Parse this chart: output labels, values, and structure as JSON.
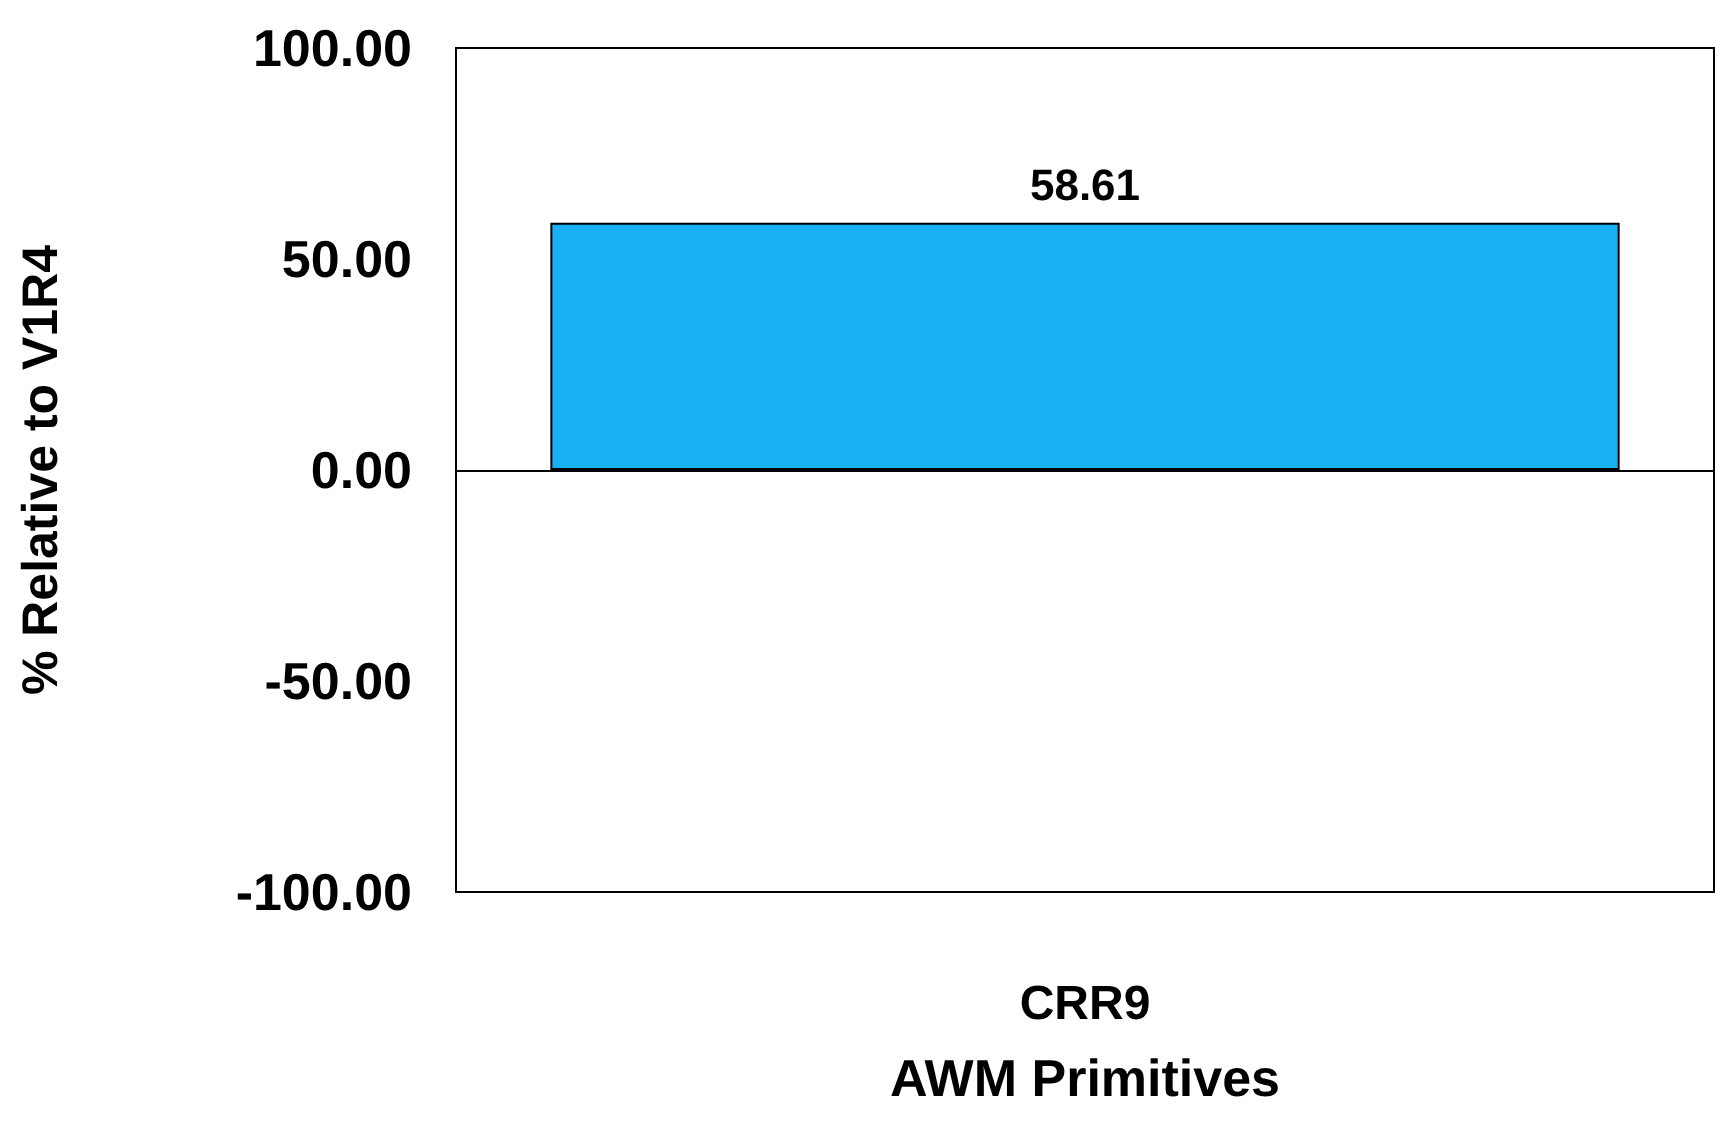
{
  "chart_data": {
    "type": "bar",
    "xlabel": "AWM Primitives",
    "ylabel": "% Relative to V1R4",
    "categories": [
      "CRR9"
    ],
    "series": [
      {
        "color": "#1ab0f4",
        "values": [
          58.61
        ]
      }
    ],
    "ylim": [
      -100,
      100
    ],
    "yticks": [
      {
        "value": -100,
        "label": "-100.00"
      },
      {
        "value": -50,
        "label": "-50.00"
      },
      {
        "value": 0,
        "label": "0.00"
      },
      {
        "value": 50,
        "label": "50.00"
      },
      {
        "value": 100,
        "label": "100.00"
      }
    ],
    "data_labels": true
  }
}
